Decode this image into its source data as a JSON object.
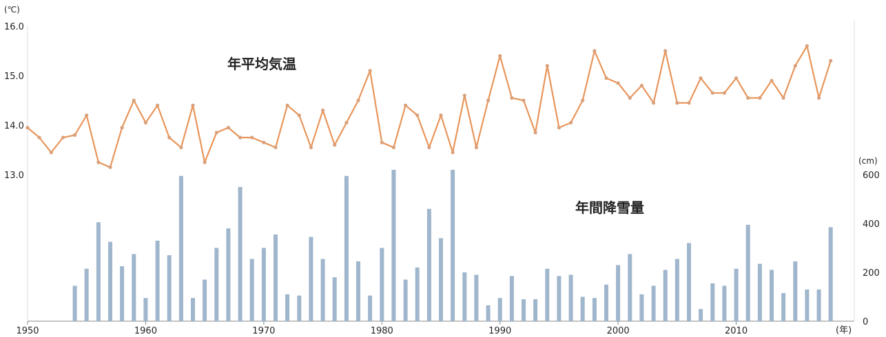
{
  "chart_data": {
    "type": "bar+line",
    "x_axis": {
      "ticks": [
        1950,
        1960,
        1970,
        1980,
        1990,
        2000,
        2010
      ],
      "range": [
        1950,
        2020
      ],
      "unit_label": "(年)"
    },
    "temperature_axis": {
      "unit_label": "(℃)",
      "ticks": [
        {
          "value": 16.0,
          "label": "16.0"
        },
        {
          "value": 15.0,
          "label": "15.0"
        },
        {
          "value": 14.0,
          "label": "14.0"
        },
        {
          "value": 13.0,
          "label": "13.0"
        }
      ],
      "range": [
        13.0,
        16.0
      ]
    },
    "snow_axis": {
      "unit_label": "(cm)",
      "ticks": [
        {
          "value": 0,
          "label": "0"
        },
        {
          "value": 200,
          "label": "200"
        },
        {
          "value": 400,
          "label": "400"
        },
        {
          "value": 600,
          "label": "600"
        }
      ],
      "range": [
        0,
        600
      ]
    },
    "series": [
      {
        "name": "年平均気温",
        "type": "line",
        "color": "#e8955a",
        "x": [
          1950,
          1951,
          1952,
          1953,
          1954,
          1955,
          1956,
          1957,
          1958,
          1959,
          1960,
          1961,
          1962,
          1963,
          1964,
          1965,
          1966,
          1967,
          1968,
          1969,
          1970,
          1971,
          1972,
          1973,
          1974,
          1975,
          1976,
          1977,
          1978,
          1979,
          1980,
          1981,
          1982,
          1983,
          1984,
          1985,
          1986,
          1987,
          1988,
          1989,
          1990,
          1991,
          1992,
          1993,
          1994,
          1995,
          1996,
          1997,
          1998,
          1999,
          2000,
          2001,
          2002,
          2003,
          2004,
          2005,
          2006,
          2007,
          2008,
          2009,
          2010,
          2011,
          2012,
          2013,
          2014,
          2015,
          2016,
          2017,
          2018
        ],
        "values": [
          13.95,
          13.75,
          13.45,
          13.75,
          13.8,
          14.2,
          13.25,
          13.15,
          13.95,
          14.5,
          14.05,
          14.4,
          13.75,
          13.55,
          14.4,
          13.25,
          13.85,
          13.95,
          13.75,
          13.75,
          13.65,
          13.55,
          14.4,
          14.2,
          13.55,
          14.3,
          13.6,
          14.05,
          14.5,
          15.1,
          13.65,
          13.55,
          14.4,
          14.2,
          13.55,
          14.2,
          13.45,
          14.6,
          13.55,
          14.5,
          15.4,
          14.55,
          14.5,
          13.85,
          15.2,
          13.95,
          14.05,
          14.5,
          15.5,
          14.95,
          14.85,
          14.55,
          14.8,
          14.45,
          15.5,
          14.45,
          14.45,
          14.95,
          14.65,
          14.65,
          14.95,
          14.55,
          14.55,
          14.9,
          14.55,
          15.2,
          15.6,
          14.55,
          15.3
        ]
      },
      {
        "name": "年間降雪量",
        "type": "bar",
        "color": "#9fb6cc",
        "x": [
          1954,
          1955,
          1956,
          1957,
          1958,
          1959,
          1960,
          1961,
          1962,
          1963,
          1964,
          1965,
          1966,
          1967,
          1968,
          1969,
          1970,
          1971,
          1972,
          1973,
          1974,
          1975,
          1976,
          1977,
          1978,
          1979,
          1980,
          1981,
          1982,
          1983,
          1984,
          1985,
          1986,
          1987,
          1988,
          1989,
          1990,
          1991,
          1992,
          1993,
          1994,
          1995,
          1996,
          1997,
          1998,
          1999,
          2000,
          2001,
          2002,
          2003,
          2004,
          2005,
          2006,
          2007,
          2008,
          2009,
          2010,
          2011,
          2012,
          2013,
          2014,
          2015,
          2016,
          2017,
          2018
        ],
        "values": [
          145,
          215,
          405,
          325,
          225,
          275,
          95,
          330,
          270,
          595,
          95,
          170,
          300,
          380,
          550,
          255,
          300,
          355,
          110,
          105,
          345,
          255,
          180,
          595,
          245,
          105,
          300,
          620,
          170,
          220,
          460,
          340,
          620,
          200,
          190,
          65,
          95,
          185,
          90,
          90,
          215,
          185,
          190,
          100,
          95,
          150,
          230,
          275,
          110,
          145,
          210,
          255,
          320,
          50,
          155,
          145,
          215,
          395,
          235,
          210,
          115,
          245,
          130,
          130,
          385
        ]
      }
    ]
  }
}
